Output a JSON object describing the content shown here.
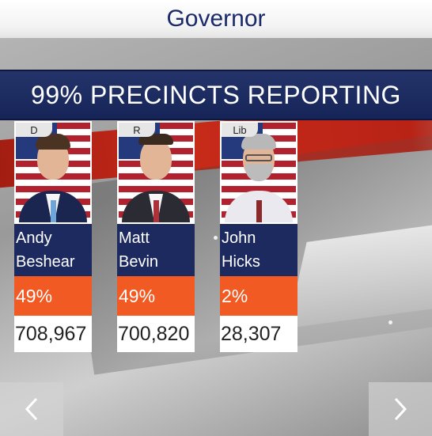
{
  "header": {
    "title": "Governor"
  },
  "banner": {
    "text": "99% PRECINCTS REPORTING"
  },
  "candidates": [
    {
      "party": "D",
      "first_name": "Andy",
      "last_name": "Beshear",
      "percent": "49%",
      "votes": "708,967"
    },
    {
      "party": "R",
      "first_name": "Matt",
      "last_name": "Bevin",
      "percent": "49%",
      "votes": "700,820"
    },
    {
      "party": "Lib",
      "first_name": "John",
      "last_name": "Hicks",
      "percent": "2%",
      "votes": "28,307"
    }
  ],
  "nav": {
    "prev_icon": "chevron-left-icon",
    "next_icon": "chevron-right-icon"
  },
  "colors": {
    "title": "#1b2a6b",
    "banner": "#1c2a60",
    "name_box": "#1c2a60",
    "percent_box": "#f15a22",
    "votes_box": "#ffffff"
  }
}
